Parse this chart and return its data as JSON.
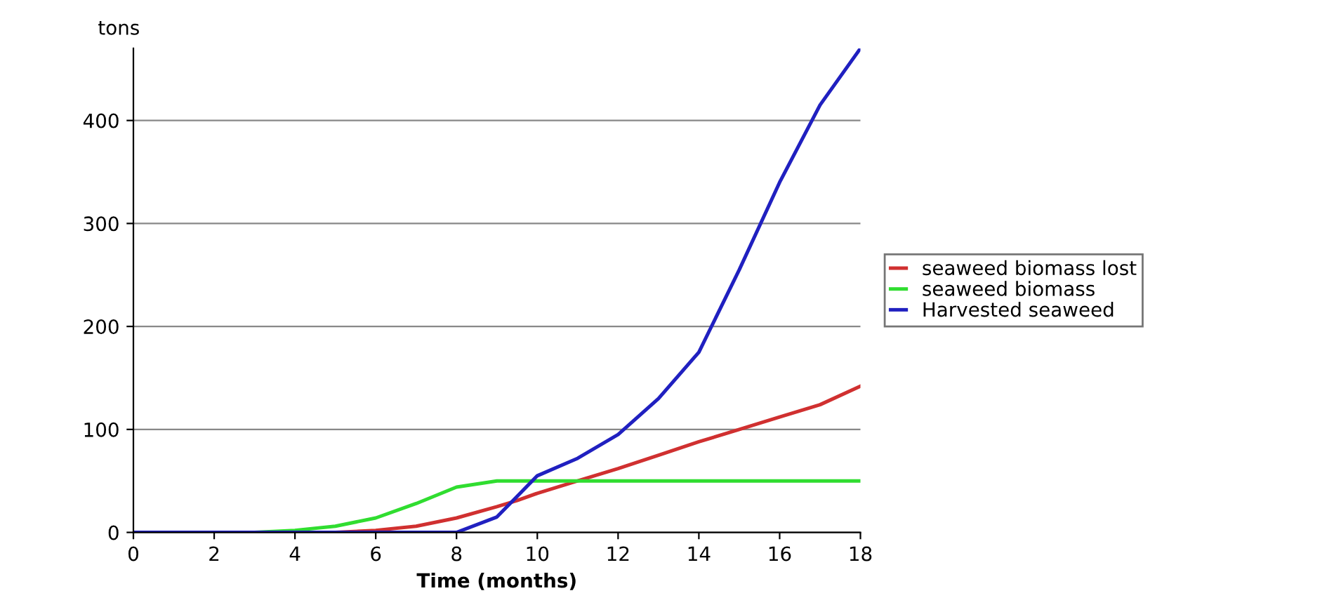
{
  "chart_data": {
    "type": "line",
    "xlabel": "Time (months)",
    "ylabel": "tons",
    "x": [
      0,
      1,
      2,
      3,
      4,
      5,
      6,
      7,
      8,
      9,
      9.5,
      10,
      11,
      12,
      13,
      14,
      15,
      16,
      17,
      18
    ],
    "series": [
      {
        "name": "seaweed biomass lost",
        "color": "#d03030",
        "values": [
          null,
          null,
          null,
          null,
          0,
          0,
          2,
          6,
          14,
          25,
          31,
          38,
          50,
          62,
          75,
          88,
          100,
          112,
          124,
          142
        ]
      },
      {
        "name": "seaweed biomass",
        "color": "#30dd30",
        "values": [
          null,
          null,
          0,
          0,
          2,
          6,
          14,
          28,
          44,
          50,
          50,
          50,
          50,
          50,
          50,
          50,
          50,
          50,
          50,
          50
        ]
      },
      {
        "name": "Harvested seaweed",
        "color": "#2020c0",
        "values": [
          0,
          0,
          0,
          0,
          0,
          0,
          0,
          0,
          0,
          15,
          35,
          55,
          72,
          95,
          130,
          175,
          255,
          340,
          415,
          470
        ]
      }
    ],
    "xlim": [
      0,
      18
    ],
    "xticks": [
      0,
      2,
      4,
      6,
      8,
      10,
      12,
      14,
      16,
      18
    ],
    "ylim": [
      0,
      470
    ],
    "yticks": [
      0,
      100,
      200,
      300,
      400
    ],
    "grid": "y",
    "legend": "right",
    "marker": "none",
    "line_style": "solid"
  }
}
